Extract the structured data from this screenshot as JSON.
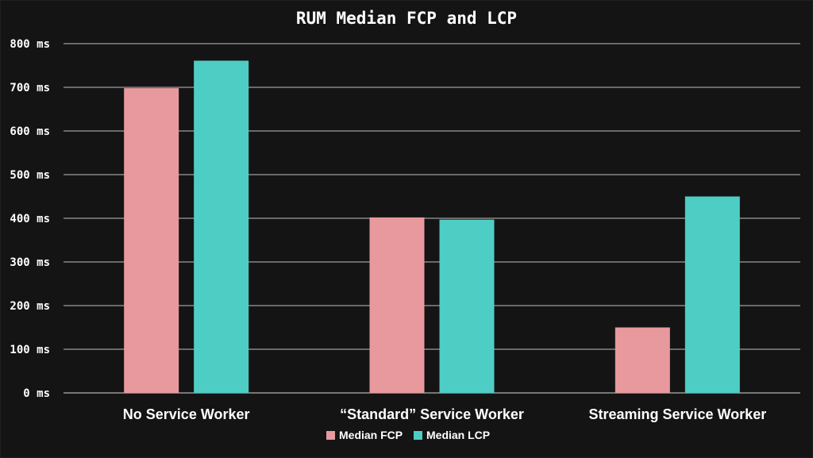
{
  "chart_data": {
    "type": "bar",
    "title": "RUM Median FCP and LCP",
    "categories": [
      "No Service Worker",
      "“Standard” Service Worker",
      "Streaming Service Worker"
    ],
    "series": [
      {
        "name": "Median FCP",
        "color": "#e8999d",
        "values": [
          698,
          402,
          150
        ]
      },
      {
        "name": "Median LCP",
        "color": "#4ecdc4",
        "values": [
          761,
          397,
          450
        ]
      }
    ],
    "yticks": [
      "0 ms",
      "100 ms",
      "200 ms",
      "300 ms",
      "400 ms",
      "500 ms",
      "600 ms",
      "700 ms",
      "800 ms"
    ],
    "ylim": [
      0,
      800
    ],
    "grid": true,
    "legend_position": "bottom",
    "background": "#141414"
  }
}
